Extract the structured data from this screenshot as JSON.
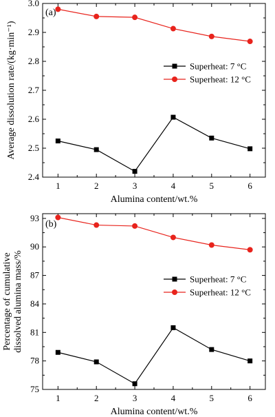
{
  "chart_data": [
    {
      "type": "line",
      "panel_label": "(a)",
      "xlabel": "Alumina content/wt.%",
      "ylabel": "Average dissolution rate/(kg·min⁻¹)",
      "x": [
        1,
        2,
        3,
        4,
        5,
        6
      ],
      "xlim": [
        0.6,
        6.4
      ],
      "ylim": [
        2.4,
        3.0
      ],
      "yticks": [
        2.4,
        2.5,
        2.6,
        2.7,
        2.8,
        2.9,
        3.0
      ],
      "ytick_labels": [
        "2.4",
        "2.5",
        "2.6",
        "2.7",
        "2.8",
        "2.9",
        "3.0"
      ],
      "xticks": [
        1,
        2,
        3,
        4,
        5,
        6
      ],
      "xtick_labels": [
        "1",
        "2",
        "3",
        "4",
        "5",
        "6"
      ],
      "legend_position": "center-right",
      "series": [
        {
          "name": "Superheat: 7 °C",
          "color": "#000000",
          "marker": "square",
          "values": [
            2.525,
            2.495,
            2.42,
            2.607,
            2.535,
            2.498
          ]
        },
        {
          "name": "Superheat: 12 °C",
          "color": "#e8231c",
          "marker": "circle",
          "values": [
            2.98,
            2.955,
            2.952,
            2.913,
            2.886,
            2.869
          ]
        }
      ]
    },
    {
      "type": "line",
      "panel_label": "(b)",
      "xlabel": "Alumina content/wt.%",
      "ylabel": "Percentage of cumulative dissolved alumina mass/%",
      "ylabel_lines": [
        "Percentage of cumulative",
        "dissolved alumina mass/%"
      ],
      "x": [
        1,
        2,
        3,
        4,
        5,
        6
      ],
      "xlim": [
        0.6,
        6.4
      ],
      "ylim": [
        75,
        93.5
      ],
      "yticks": [
        75,
        78,
        81,
        84,
        87,
        90,
        93
      ],
      "ytick_labels": [
        "75",
        "78",
        "81",
        "84",
        "87",
        "90",
        "93"
      ],
      "xticks": [
        1,
        2,
        3,
        4,
        5,
        6
      ],
      "xtick_labels": [
        "1",
        "2",
        "3",
        "4",
        "5",
        "6"
      ],
      "legend_position": "center-right",
      "series": [
        {
          "name": "Superheat: 7 °C",
          "color": "#000000",
          "marker": "square",
          "values": [
            78.9,
            77.9,
            75.6,
            81.5,
            79.2,
            78.0
          ]
        },
        {
          "name": "Superheat: 12 °C",
          "color": "#e8231c",
          "marker": "circle",
          "values": [
            93.1,
            92.3,
            92.2,
            91.0,
            90.2,
            89.7
          ]
        }
      ]
    }
  ]
}
